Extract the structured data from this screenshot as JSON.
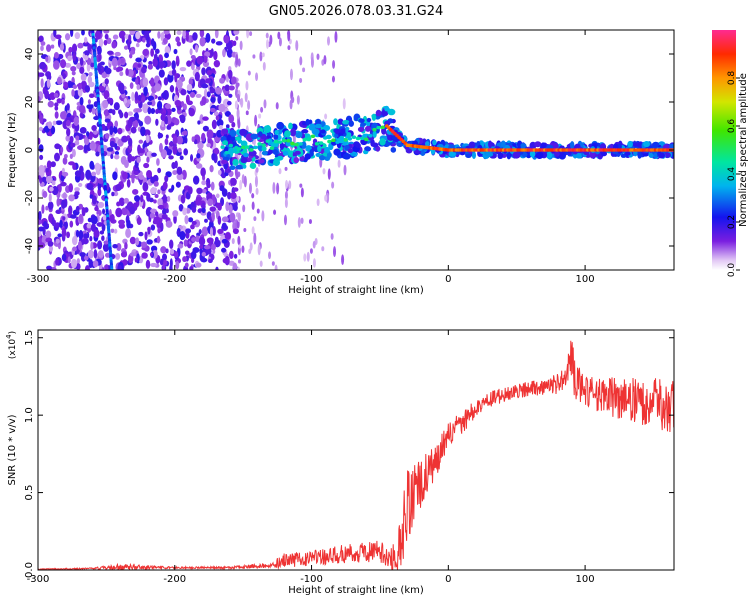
{
  "figure_title": "GN05.2026.078.03.31.G24",
  "colorbar": {
    "label": "Normalized spectral amplitude",
    "ticks": [
      "0.0",
      "0.2",
      "0.4",
      "0.6",
      "0.8"
    ],
    "tick_values": [
      0.0,
      0.2,
      0.4,
      0.6,
      0.8
    ],
    "range": [
      0,
      1
    ]
  },
  "chart_data": [
    {
      "type": "heatmap",
      "title": "",
      "xlabel": "Height of straight line (km)",
      "ylabel": "Frequency (Hz)",
      "xlim": [
        -300,
        165
      ],
      "ylim": [
        -50,
        50
      ],
      "xticks": [
        -300,
        -200,
        -100,
        0,
        100
      ],
      "xtick_labels": [
        "-300",
        "-200",
        "-100",
        "0",
        "100"
      ],
      "yticks": [
        -40,
        -20,
        0,
        20,
        40
      ],
      "ytick_labels": [
        "-40",
        "-20",
        "0",
        "20",
        "40"
      ],
      "features": [
        {
          "name": "scattered noise",
          "x_range": [
            -300,
            -155
          ],
          "amplitude": 0.15
        },
        {
          "name": "diagonal streak",
          "x": [
            -260,
            -246
          ],
          "y": [
            50,
            -50
          ],
          "amplitude": 0.2
        },
        {
          "name": "tail ridge",
          "x": [
            -165,
            -60,
            -45,
            -30,
            0,
            165
          ],
          "y": [
            0,
            6,
            10,
            2,
            0,
            0
          ],
          "amplitude": 0.95
        }
      ]
    },
    {
      "type": "line",
      "title": "",
      "xlabel": "Height of straight line (km)",
      "ylabel": "SNR (10 * v/v)",
      "multiplier": "(x10",
      "multiplier_exp": "4",
      "multiplier_close": ")",
      "xlim": [
        -300,
        165
      ],
      "ylim": [
        0,
        1.55
      ],
      "xticks": [
        -300,
        -200,
        -100,
        0,
        100
      ],
      "xtick_labels": [
        "-300",
        "-200",
        "-100",
        "0",
        "100"
      ],
      "yticks": [
        0.0,
        0.5,
        1.0,
        1.5
      ],
      "ytick_labels": [
        "0.0",
        "0.5",
        "1.0",
        "1.5"
      ],
      "series": [
        {
          "name": "SNR",
          "color": "#ee3333",
          "x": [
            -300,
            -260,
            -240,
            -200,
            -160,
            -130,
            -120,
            -100,
            -80,
            -60,
            -50,
            -45,
            -40,
            -35,
            -30,
            -25,
            -20,
            -15,
            -10,
            -5,
            0,
            10,
            20,
            30,
            50,
            70,
            85,
            90,
            95,
            100,
            110,
            130,
            150,
            165
          ],
          "y": [
            0.005,
            0.01,
            0.02,
            0.015,
            0.015,
            0.03,
            0.06,
            0.08,
            0.1,
            0.12,
            0.12,
            0.08,
            0.07,
            0.2,
            0.4,
            0.5,
            0.55,
            0.62,
            0.68,
            0.78,
            0.88,
            0.95,
            1.05,
            1.1,
            1.16,
            1.18,
            1.22,
            1.3,
            1.2,
            1.16,
            1.13,
            1.1,
            1.08,
            1.05
          ],
          "noise": [
            0.003,
            0.005,
            0.02,
            0.005,
            0.008,
            0.015,
            0.05,
            0.05,
            0.06,
            0.07,
            0.08,
            0.06,
            0.1,
            0.2,
            0.25,
            0.2,
            0.18,
            0.14,
            0.12,
            0.1,
            0.09,
            0.08,
            0.06,
            0.05,
            0.05,
            0.05,
            0.08,
            0.2,
            0.12,
            0.1,
            0.12,
            0.14,
            0.16,
            0.18
          ]
        }
      ]
    }
  ]
}
